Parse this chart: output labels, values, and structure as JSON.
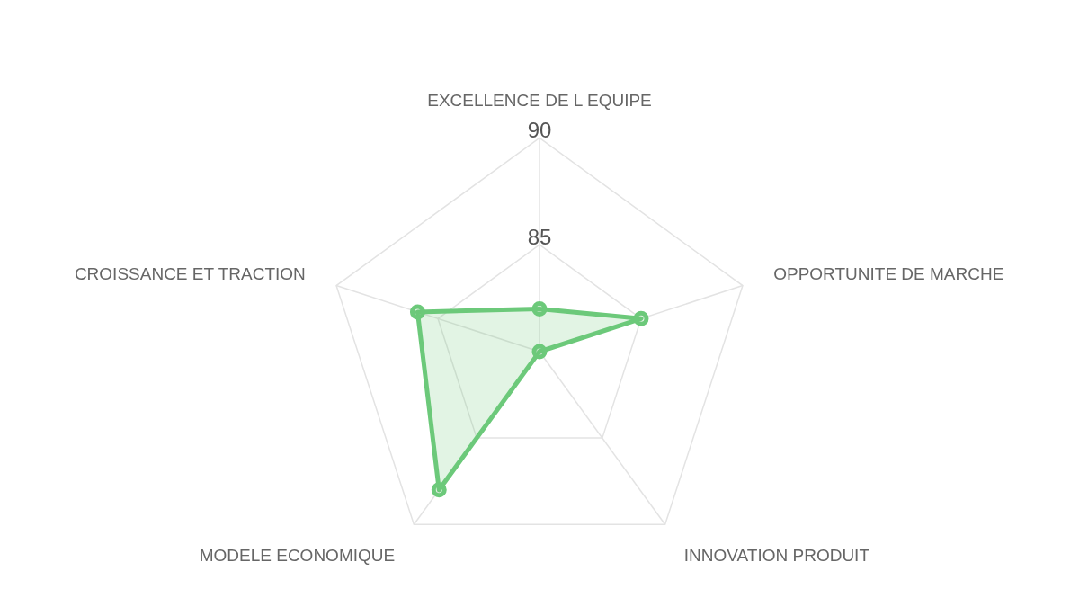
{
  "chart_data": {
    "type": "radar",
    "categories": [
      "EXCELLENCE DE L EQUIPE",
      "OPPORTUNITE DE MARCHE",
      "INNOVATION PRODUIT",
      "MODELE ECONOMIQUE",
      "CROISSANCE ET TRACTION"
    ],
    "series": [
      {
        "color": "#6cc97a",
        "values": [
          82,
          85,
          80,
          88,
          86
        ]
      }
    ],
    "ylim": [
      80,
      90
    ],
    "yticks": [
      85,
      90
    ],
    "grid": true,
    "marker": "circle"
  }
}
